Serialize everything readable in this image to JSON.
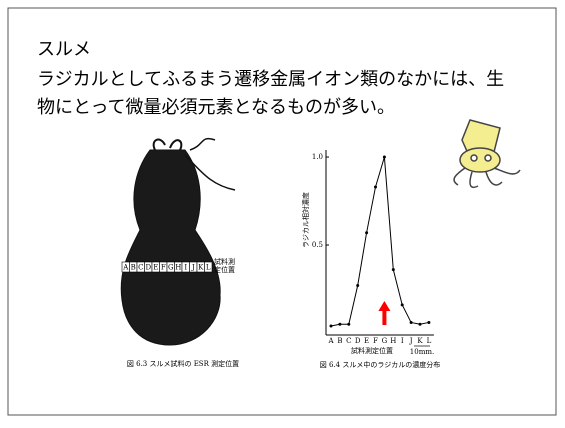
{
  "slide": {
    "title": "スルメ",
    "body_lines": [
      "ラジカルとしてふるまう遷移金属イオン類のなかには、生",
      "物にとって微量必須元素となるものが多い。"
    ]
  },
  "figure_left": {
    "positions": [
      "A",
      "B",
      "C",
      "D",
      "E",
      "F",
      "G",
      "H",
      "I",
      "J",
      "K",
      "L"
    ],
    "position_label_lines": [
      "試料測",
      "定位置"
    ],
    "caption": "図 6.3  スルメ試料の ESR 測定位置"
  },
  "figure_right": {
    "type": "line",
    "y_label": "ラジカル相対濃度",
    "x_label": "試料測定位置",
    "scale_label": "10mm.",
    "caption": "図 6.4  スルメ中のラジカルの濃度分布",
    "categories": [
      "A",
      "B",
      "C",
      "D",
      "E",
      "F",
      "G",
      "H",
      "I",
      "J",
      "K",
      "L"
    ],
    "values": [
      0.04,
      0.05,
      0.05,
      0.27,
      0.57,
      0.83,
      1.0,
      0.36,
      0.16,
      0.06,
      0.05,
      0.06
    ],
    "color": "#000000",
    "marker_color": "#ff0000",
    "ylim": [
      0,
      1.04
    ],
    "yticks": [
      {
        "value": 0.5,
        "label": "0.5"
      },
      {
        "value": 1,
        "label": "1.0"
      }
    ]
  }
}
